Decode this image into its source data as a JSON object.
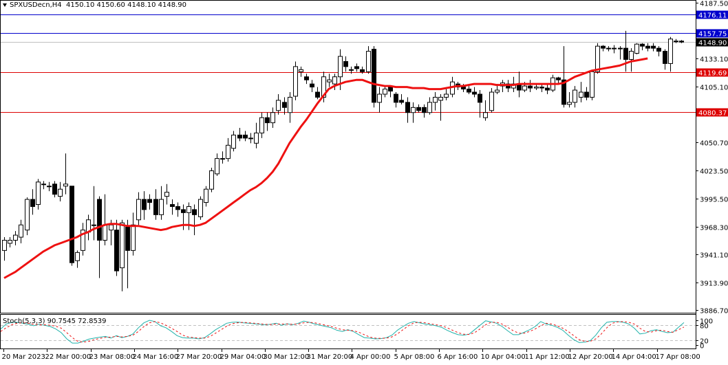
{
  "header": {
    "symbol": "SPXUSDecn,H4",
    "ohlc": "4150.10 4150.60 4148.10 4148.90"
  },
  "indicator": {
    "label": "Stoch(5,3,3) 90.7545 72.8539"
  },
  "colors": {
    "background": "#ffffff",
    "candle_up_fill": "#ffffff",
    "candle_down_fill": "#000000",
    "candle_outline": "#000000",
    "ma_line": "#ee1111",
    "level_blue": "#0000cc",
    "level_red": "#dd0000",
    "bid_line": "#c0c0c0",
    "stoch_main": "#20b2aa",
    "stoch_signal": "#ee1111",
    "grid_dash": "#c0c0c0"
  },
  "chart_data": [
    {
      "type": "candlestick",
      "title": "SPXUSDecn,H4 4150.10 4150.60 4148.10 4148.90",
      "xlabel": "",
      "ylabel": "",
      "ylim": [
        3886.7,
        4187.5
      ],
      "y_ticks": [
        4187.5,
        4133.1,
        4105.1,
        4050.7,
        4023.5,
        3995.5,
        3968.3,
        3941.1,
        3913.9,
        3886.7
      ],
      "x_ticks": [
        "20 Mar 2023",
        "22 Mar 00:00",
        "23 Mar 08:00",
        "24 Mar 16:00",
        "27 Mar 20:00",
        "29 Mar 04:00",
        "30 Mar 12:00",
        "31 Mar 20:00",
        "4 Apr 00:00",
        "5 Apr 08:00",
        "6 Apr 16:00",
        "10 Apr 04:00",
        "11 Apr 12:00",
        "12 Apr 20:00",
        "14 Apr 04:00",
        "17 Apr 08:00"
      ],
      "horizontal_levels": [
        {
          "value": 4176.11,
          "label": "4176.11",
          "color": "#0000cc"
        },
        {
          "value": 4157.75,
          "label": "4157.75",
          "color": "#0000cc"
        },
        {
          "value": 4148.9,
          "label": "4148.90",
          "color": "#000000",
          "kind": "bid"
        },
        {
          "value": 4119.69,
          "label": "4119.69",
          "color": "#dd0000"
        },
        {
          "value": 4080.37,
          "label": "4080.37",
          "color": "#dd0000"
        }
      ],
      "candles": [
        [
          3945,
          3955,
          3935,
          3958
        ],
        [
          3952,
          3955,
          3948,
          3958
        ],
        [
          3955,
          3960,
          3950,
          3964
        ],
        [
          3958,
          3970,
          3952,
          3975
        ],
        [
          3965,
          3995,
          3960,
          3997
        ],
        [
          3995,
          3988,
          3980,
          4005
        ],
        [
          3990,
          4012,
          3985,
          4015
        ],
        [
          4010,
          4010,
          4005,
          4013
        ],
        [
          4008,
          4008,
          4003,
          4012
        ],
        [
          4010,
          4000,
          3997,
          4013
        ],
        [
          3998,
          4005,
          3993,
          4012
        ],
        [
          4008,
          4010,
          4000,
          4040
        ],
        [
          4008,
          3933,
          3930,
          4008
        ],
        [
          3935,
          3943,
          3928,
          3945
        ],
        [
          3945,
          3965,
          3940,
          3972
        ],
        [
          3963,
          3975,
          3955,
          3980
        ],
        [
          3970,
          3970,
          3955,
          4008
        ],
        [
          3995,
          3955,
          3918,
          3998
        ],
        [
          3955,
          3970,
          3950,
          4000
        ],
        [
          3965,
          3970,
          3950,
          3975
        ],
        [
          3965,
          3925,
          3920,
          3975
        ],
        [
          3928,
          3972,
          3905,
          3975
        ],
        [
          3968,
          3945,
          3908,
          3975
        ],
        [
          3945,
          3970,
          3940,
          3982
        ],
        [
          3975,
          3995,
          3970,
          4002
        ],
        [
          3995,
          3985,
          3975,
          4003
        ],
        [
          3995,
          3992,
          3985,
          4000
        ],
        [
          3995,
          3980,
          3975,
          4005
        ],
        [
          3980,
          3995,
          3975,
          4008
        ],
        [
          3998,
          4002,
          3990,
          4010
        ],
        [
          3990,
          3988,
          3980,
          3995
        ],
        [
          3988,
          3985,
          3978,
          3992
        ],
        [
          3985,
          3982,
          3965,
          3990
        ],
        [
          3982,
          3988,
          3965,
          3992
        ],
        [
          3985,
          3980,
          3960,
          3990
        ],
        [
          3978,
          3995,
          3975,
          3998
        ],
        [
          3992,
          4005,
          3988,
          4008
        ],
        [
          4005,
          4023,
          4002,
          4026
        ],
        [
          4020,
          4035,
          4018,
          4040
        ],
        [
          4035,
          4035,
          4030,
          4042
        ],
        [
          4035,
          4048,
          4032,
          4055
        ],
        [
          4045,
          4058,
          4042,
          4062
        ],
        [
          4058,
          4055,
          4052,
          4065
        ],
        [
          4058,
          4055,
          4052,
          4062
        ],
        [
          4055,
          4055,
          4050,
          4060
        ],
        [
          4050,
          4060,
          4045,
          4070
        ],
        [
          4060,
          4075,
          4055,
          4080
        ],
        [
          4075,
          4070,
          4062,
          4080
        ],
        [
          4070,
          4080,
          4065,
          4085
        ],
        [
          4082,
          4092,
          4078,
          4098
        ],
        [
          4090,
          4085,
          4078,
          4095
        ],
        [
          4080,
          4095,
          4070,
          4100
        ],
        [
          4096,
          4125,
          4092,
          4130
        ],
        [
          4120,
          4122,
          4115,
          4125
        ],
        [
          4115,
          4112,
          4108,
          4118
        ],
        [
          4108,
          4105,
          4100,
          4112
        ],
        [
          4100,
          4095,
          4093,
          4105
        ],
        [
          4095,
          4115,
          4090,
          4120
        ],
        [
          4110,
          4112,
          4105,
          4118
        ],
        [
          4108,
          4115,
          4102,
          4118
        ],
        [
          4115,
          4135,
          4102,
          4142
        ],
        [
          4130,
          4125,
          4120,
          4135
        ],
        [
          4122,
          4122,
          4118,
          4125
        ],
        [
          4125,
          4123,
          4120,
          4128
        ],
        [
          4122,
          4120,
          4118,
          4125
        ],
        [
          4120,
          4140,
          4118,
          4145
        ],
        [
          4142,
          4090,
          4085,
          4145
        ],
        [
          4090,
          4098,
          4080,
          4105
        ],
        [
          4098,
          4103,
          4095,
          4106
        ],
        [
          4105,
          4101,
          4095,
          4106
        ],
        [
          4098,
          4090,
          4085,
          4100
        ],
        [
          4092,
          4090,
          4088,
          4098
        ],
        [
          4090,
          4080,
          4070,
          4095
        ],
        [
          4080,
          4085,
          4070,
          4090
        ],
        [
          4085,
          4082,
          4080,
          4088
        ],
        [
          4085,
          4080,
          4075,
          4088
        ],
        [
          4080,
          4090,
          4078,
          4095
        ],
        [
          4090,
          4095,
          4082,
          4100
        ],
        [
          4092,
          4095,
          4072,
          4098
        ],
        [
          4095,
          4098,
          4092,
          4104
        ],
        [
          4098,
          4110,
          4095,
          4115
        ],
        [
          4108,
          4105,
          4102,
          4110
        ],
        [
          4105,
          4103,
          4100,
          4108
        ],
        [
          4103,
          4100,
          4098,
          4106
        ],
        [
          4100,
          4098,
          4095,
          4105
        ],
        [
          4098,
          4090,
          4075,
          4102
        ],
        [
          4075,
          4080,
          4072,
          4092
        ],
        [
          4082,
          4100,
          4080,
          4104
        ],
        [
          4100,
          4102,
          4098,
          4108
        ],
        [
          4106,
          4109,
          4100,
          4112
        ],
        [
          4108,
          4104,
          4100,
          4112
        ],
        [
          4104,
          4108,
          4100,
          4115
        ],
        [
          4108,
          4102,
          4095,
          4120
        ],
        [
          4102,
          4106,
          4100,
          4110
        ],
        [
          4106,
          4104,
          4100,
          4112
        ],
        [
          4104,
          4105,
          4102,
          4108
        ],
        [
          4105,
          4104,
          4100,
          4108
        ],
        [
          4104,
          4102,
          4098,
          4108
        ],
        [
          4102,
          4114,
          4100,
          4117
        ],
        [
          4114,
          4112,
          4108,
          4115
        ],
        [
          4112,
          4088,
          4085,
          4145
        ],
        [
          4088,
          4090,
          4085,
          4100
        ],
        [
          4090,
          4102,
          4085,
          4106
        ],
        [
          4095,
          4100,
          4090,
          4110
        ],
        [
          4100,
          4095,
          4092,
          4105
        ],
        [
          4095,
          4120,
          4092,
          4122
        ],
        [
          4120,
          4145,
          4118,
          4148
        ],
        [
          4145,
          4143,
          4140,
          4146
        ],
        [
          4143,
          4143,
          4140,
          4145
        ],
        [
          4143,
          4143,
          4138,
          4146
        ],
        [
          4143,
          4143,
          4132,
          4145
        ],
        [
          4143,
          4132,
          4120,
          4160
        ],
        [
          4132,
          4140,
          4120,
          4143
        ],
        [
          4138,
          4147,
          4137,
          4148
        ],
        [
          4147,
          4145,
          4141,
          4148
        ],
        [
          4145,
          4143,
          4140,
          4148
        ],
        [
          4145,
          4143,
          4140,
          4148
        ],
        [
          4143,
          4140,
          4135,
          4145
        ],
        [
          4140,
          4128,
          4122,
          4142
        ],
        [
          4128,
          4152,
          4120,
          4154
        ],
        [
          4150,
          4150,
          4148,
          4152
        ],
        [
          4150,
          4149,
          4148,
          4151
        ]
      ],
      "moving_average": {
        "name": "MA",
        "color": "#ee1111",
        "values": [
          3918,
          3921,
          3924,
          3928,
          3932,
          3936,
          3940,
          3944,
          3947,
          3950,
          3952,
          3954,
          3956,
          3958,
          3961,
          3963,
          3966,
          3968,
          3970,
          3971,
          3971,
          3970,
          3969,
          3969,
          3969,
          3968,
          3967,
          3966,
          3965,
          3966,
          3968,
          3969,
          3970,
          3970,
          3969,
          3970,
          3972,
          3976,
          3980,
          3984,
          3988,
          3992,
          3996,
          4000,
          4004,
          4007,
          4011,
          4016,
          4022,
          4030,
          4040,
          4050,
          4058,
          4066,
          4073,
          4081,
          4089,
          4096,
          4103,
          4106,
          4108,
          4110,
          4111,
          4112,
          4112,
          4110,
          4108,
          4107,
          4106,
          4106,
          4105,
          4105,
          4105,
          4104,
          4104,
          4104,
          4103,
          4103,
          4103,
          4104,
          4105,
          4106,
          4106,
          4107,
          4108,
          4108,
          4108,
          4108,
          4107,
          4107,
          4107,
          4107,
          4108,
          4108,
          4108,
          4108,
          4108,
          4108,
          4108,
          4108,
          4109,
          4112,
          4115,
          4117,
          4119,
          4121,
          4122,
          4123,
          4124,
          4125,
          4126,
          4128,
          4130,
          4131,
          4132,
          4133
        ]
      }
    },
    {
      "type": "line",
      "title": "Stoch(5,3,3) 90.7545 72.8539",
      "ylim": [
        0,
        100
      ],
      "y_ticks": [
        100,
        80,
        20,
        0
      ],
      "levels": [
        80,
        20
      ],
      "series": [
        {
          "name": "Stoch %K",
          "color": "#20b2aa",
          "values": [
            65,
            85,
            92,
            92,
            88,
            84,
            78,
            84,
            80,
            75,
            65,
            50,
            25,
            8,
            8,
            15,
            24,
            28,
            32,
            35,
            28,
            38,
            30,
            35,
            45,
            70,
            90,
            100,
            95,
            78,
            70,
            55,
            38,
            30,
            28,
            28,
            25,
            30,
            45,
            62,
            75,
            88,
            92,
            93,
            90,
            88,
            86,
            84,
            82,
            84,
            88,
            80,
            86,
            82,
            88,
            97,
            92,
            85,
            80,
            75,
            70,
            60,
            55,
            62,
            55,
            42,
            30,
            28,
            25,
            26,
            30,
            40,
            60,
            75,
            88,
            95,
            90,
            85,
            82,
            78,
            72,
            60,
            50,
            42,
            40,
            44,
            62,
            80,
            98,
            94,
            88,
            75,
            58,
            42,
            42,
            52,
            62,
            75,
            95,
            85,
            80,
            72,
            60,
            40,
            22,
            10,
            12,
            18,
            40,
            70,
            92,
            95,
            95,
            92,
            85,
            68,
            45,
            48,
            58,
            62,
            55,
            50,
            52,
            72,
            90.75
          ]
        },
        {
          "name": "Stoch %D",
          "color": "#ee1111",
          "style": "dashed",
          "values": [
            55,
            70,
            82,
            88,
            90,
            88,
            84,
            82,
            82,
            80,
            76,
            68,
            50,
            30,
            15,
            12,
            15,
            22,
            27,
            31,
            32,
            35,
            33,
            35,
            40,
            55,
            75,
            90,
            95,
            90,
            80,
            68,
            55,
            40,
            33,
            30,
            28,
            28,
            35,
            48,
            62,
            76,
            86,
            90,
            92,
            90,
            88,
            86,
            84,
            83,
            85,
            85,
            85,
            84,
            85,
            90,
            92,
            90,
            85,
            80,
            75,
            68,
            62,
            60,
            58,
            52,
            42,
            32,
            28,
            27,
            28,
            33,
            45,
            62,
            78,
            90,
            92,
            90,
            86,
            82,
            78,
            70,
            60,
            50,
            44,
            43,
            50,
            65,
            82,
            92,
            92,
            85,
            72,
            58,
            48,
            48,
            55,
            65,
            78,
            88,
            85,
            78,
            68,
            55,
            38,
            22,
            15,
            15,
            25,
            45,
            70,
            88,
            94,
            95,
            92,
            85,
            68,
            55,
            52,
            58,
            60,
            55,
            52,
            62,
            72.85
          ]
        }
      ]
    }
  ]
}
